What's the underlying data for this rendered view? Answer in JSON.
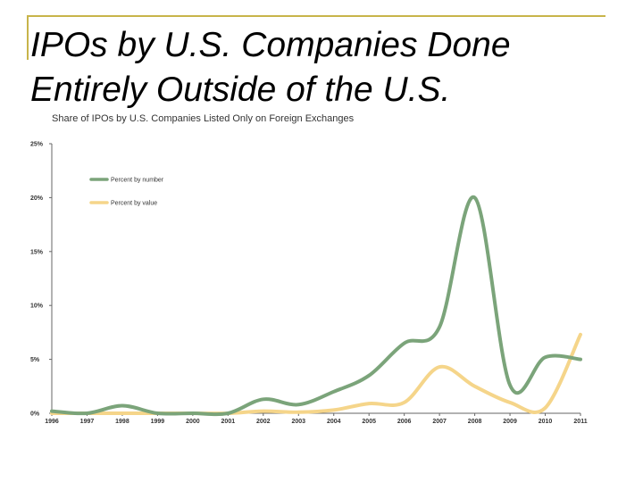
{
  "slide": {
    "title_line1": "IPOs by U.S. Companies Done",
    "title_line2": "Entirely Outside of the U.S."
  },
  "colors": {
    "frame": "#c8b44a",
    "percent_by_number": "#7ba47a",
    "percent_by_value": "#f5d58a"
  },
  "chart_data": {
    "type": "line",
    "title": "Share of IPOs by U.S. Companies Listed Only on Foreign Exchanges",
    "xlabel": "",
    "ylabel": "",
    "x_tick_labels": [
      "1996",
      "1997",
      "1998",
      "1999",
      "2000",
      "2001",
      "2002",
      "2003",
      "2004",
      "2005",
      "2006",
      "2007",
      "2008",
      "2009",
      "2010",
      "2011"
    ],
    "y_tick_labels": [
      "0%",
      "5%",
      "10%",
      "15%",
      "20%",
      "25%"
    ],
    "xlim": [
      1996,
      2011
    ],
    "ylim": [
      0,
      25
    ],
    "grid": false,
    "legend_position": "top-left",
    "series": [
      {
        "name": "Percent by number",
        "color": "#7ba47a",
        "x": [
          1996,
          1997,
          1998,
          1999,
          2000,
          2001,
          2002,
          2003,
          2004,
          2005,
          2006,
          2007,
          2008,
          2009,
          2010,
          2011
        ],
        "values": [
          0.2,
          0,
          0.7,
          0,
          0,
          0,
          1.3,
          0.8,
          2.0,
          3.5,
          6.5,
          8.0,
          20.0,
          2.6,
          5.2,
          5.0
        ]
      },
      {
        "name": "Percent by value",
        "color": "#f5d58a",
        "x": [
          1996,
          1997,
          1998,
          1999,
          2000,
          2001,
          2002,
          2003,
          2004,
          2005,
          2006,
          2007,
          2008,
          2009,
          2010,
          2011
        ],
        "values": [
          0,
          0,
          0,
          0,
          0,
          0,
          0.2,
          0.1,
          0.3,
          0.9,
          1.0,
          4.3,
          2.5,
          1.0,
          0.5,
          7.3
        ]
      }
    ]
  }
}
